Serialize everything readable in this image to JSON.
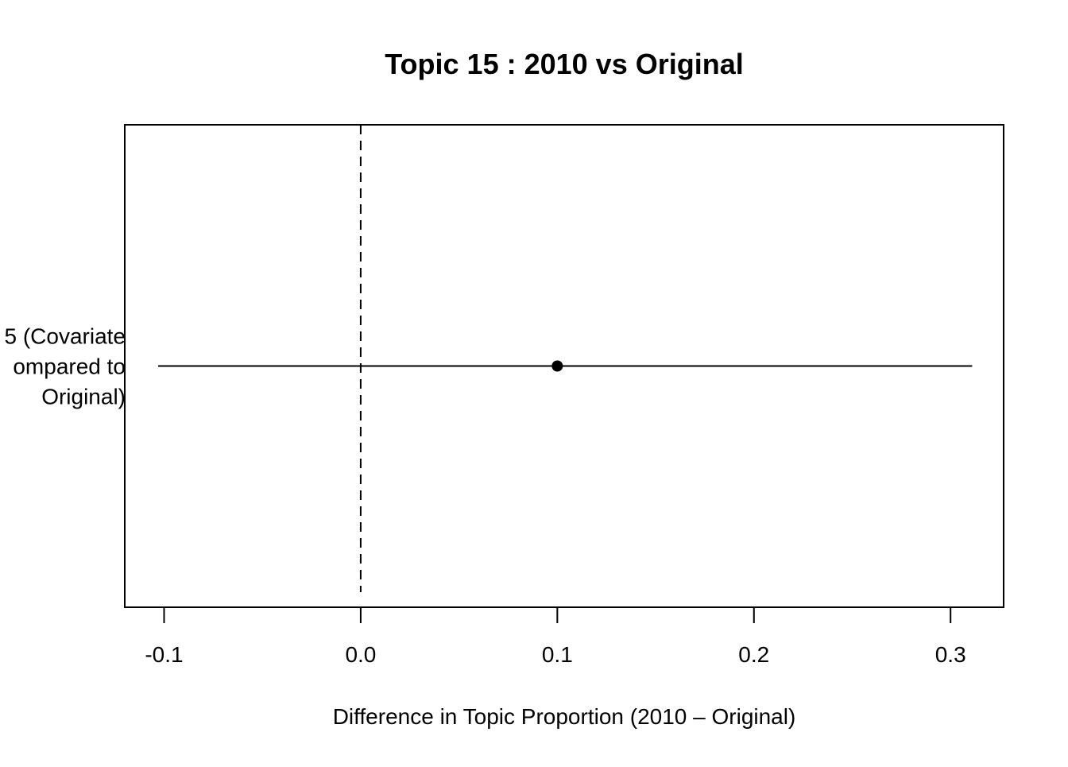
{
  "chart_data": {
    "type": "scatter",
    "title": "Topic 15 : 2010 vs Original",
    "xlabel": "Difference in Topic Proportion (2010 – Original)",
    "ylabel": "",
    "xlim": [
      -0.12,
      0.327
    ],
    "xticks": [
      -0.1,
      0.0,
      0.1,
      0.2,
      0.3
    ],
    "xtick_labels": [
      "-0.1",
      "0.0",
      "0.1",
      "0.2",
      "0.3"
    ],
    "reference_line": {
      "x": 0.0,
      "style": "dashed"
    },
    "grid": false,
    "legend": "none",
    "categories": [
      {
        "label_lines": [
          "5 (Covariate",
          "ompared to",
          "Original)"
        ],
        "estimate": 0.1,
        "ci_lower": -0.103,
        "ci_upper": 0.311
      }
    ],
    "colors": {
      "ink": "#000000",
      "background": "#ffffff"
    }
  }
}
